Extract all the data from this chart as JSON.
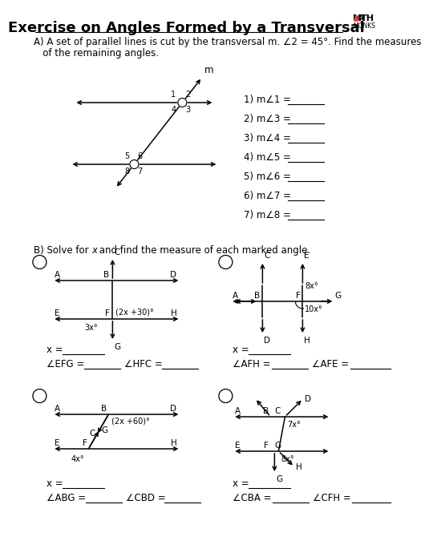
{
  "title": "Exercise on Angles Formed by a Transversal",
  "bg_color": "#ffffff",
  "part_a_text1": "A) A set of parallel lines is cut by the transversal m. ∠2 = 45°. Find the measures",
  "part_a_text2": "   of the remaining angles.",
  "part_b_text": "B) Solve for ϰ and find the measure of each marked angle.",
  "angle_labels": [
    "1) m∠1 =",
    "2) m∠3 =",
    "3) m∠4 =",
    "4) m∠5 =",
    "5) m∠6 =",
    "6) m∠7 =",
    "7) m∠8 ="
  ]
}
